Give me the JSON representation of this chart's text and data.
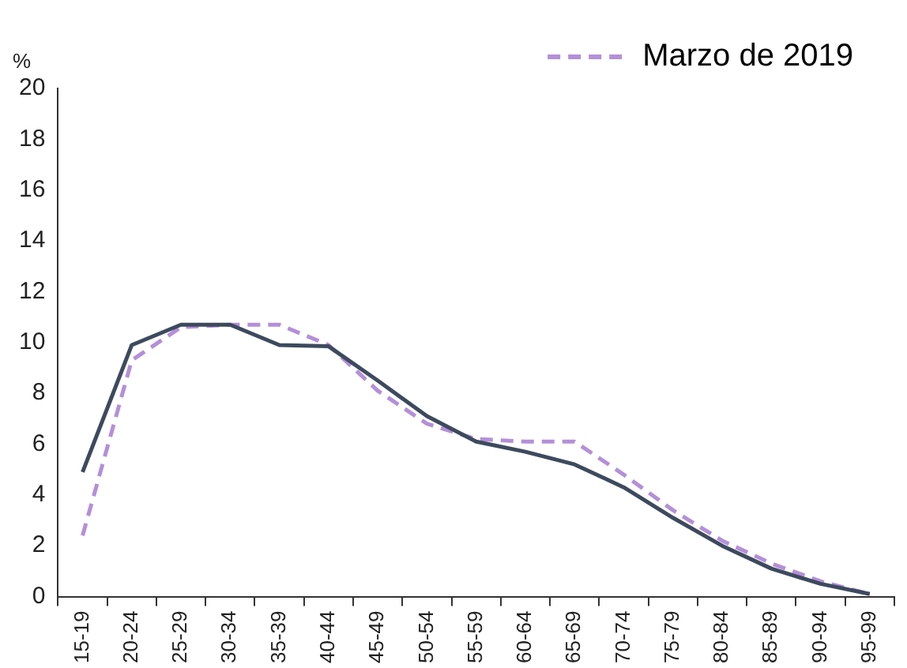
{
  "chart_data": {
    "type": "line",
    "ylabel": "%",
    "categories": [
      "15-19",
      "20-24",
      "25-29",
      "30-34",
      "35-39",
      "40-44",
      "45-49",
      "50-54",
      "55-59",
      "60-64",
      "65-69",
      "70-74",
      "75-79",
      "80-84",
      "85-89",
      "90-94",
      "95-99"
    ],
    "series": [
      {
        "color": "#3d4a5e",
        "line_style": "solid",
        "values": [
          4.9,
          9.9,
          10.7,
          10.7,
          9.9,
          9.85,
          8.5,
          7.1,
          6.1,
          5.7,
          5.2,
          4.3,
          3.1,
          2.0,
          1.1,
          0.5,
          0.1
        ]
      },
      {
        "name": "Marzo de 2019",
        "color": "#b48fd9",
        "line_style": "dashed",
        "values": [
          2.4,
          9.3,
          10.6,
          10.7,
          10.7,
          9.9,
          8.1,
          6.8,
          6.2,
          6.1,
          6.1,
          4.8,
          3.4,
          2.2,
          1.3,
          0.6,
          0.1
        ]
      }
    ],
    "ylim": [
      0,
      20
    ],
    "yticks": [
      0,
      2,
      4,
      6,
      8,
      10,
      12,
      14,
      16,
      18,
      20
    ],
    "grid": false,
    "legend": "top right",
    "marker": "none"
  }
}
